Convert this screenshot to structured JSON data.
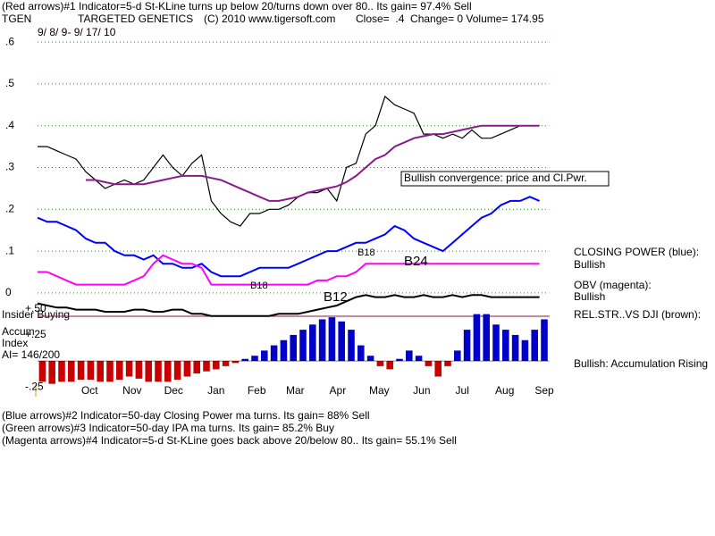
{
  "header": {
    "line1": "(Red arrows)#1 Indicator=5-d St-KLine turns up below 20/turns down over 80.. Its gain= 97.4% Sell",
    "symbol": "TGEN",
    "company": "TARGETED GENETICS",
    "copyright": "(C) 2010 www.tigersoft.com",
    "quote": "Close=  .4  Change= 0 Volume= 174.95",
    "date_range": "9/ 8/ 9- 9/ 17/ 10"
  },
  "side_labels": {
    "closing_power": "CLOSING POWER (blue):",
    "closing_power_state": "Bullish",
    "obv": "OBV (magenta):",
    "obv_state": "Bullish",
    "rel_str": "REL.STR..VS DJI (brown):",
    "accum_state": "Bullish: Accumulation Rising",
    "insider": "Insider Buying",
    "accum": "Accum",
    "index": "Index",
    "ai": "AI= 146/200"
  },
  "footer": [
    "(Blue arrows)#2 Indicator=50-day Closing Power ma turns. Its gain= 88% Sell",
    "(Green arrows)#3 Indicator=50-day IPA ma turns. Its gain= 85.2% Buy",
    "(Magenta arrows)#4 Indicator=5-d St-KLine goes back above 20/below 80.. Its gain= 55.1% Sell"
  ],
  "chart_data": [
    {
      "type": "line",
      "annotations": [
        "Bullish convergence: price and Cl.Pwr.",
        "B24",
        "B12",
        "B18",
        "B18"
      ],
      "x": [
        0,
        1,
        2,
        3,
        4,
        5,
        6,
        7,
        8,
        9,
        10,
        11,
        12,
        13,
        14,
        15,
        16,
        17,
        18,
        19,
        20,
        21,
        22,
        23,
        24,
        25,
        26,
        27,
        28,
        29,
        30,
        31,
        32,
        33,
        34,
        35,
        36,
        37,
        38,
        39,
        40,
        41,
        42,
        43,
        44,
        45,
        46,
        47,
        48,
        49,
        50,
        51,
        52
      ],
      "xlim": [
        0,
        53
      ],
      "xticks": [
        {
          "value": 5.4,
          "label": "Oct"
        },
        {
          "value": 9.8,
          "label": "Nov"
        },
        {
          "value": 14.1,
          "label": "Dec"
        },
        {
          "value": 18.5,
          "label": "Jan"
        },
        {
          "value": 22.7,
          "label": "Feb"
        },
        {
          "value": 26.7,
          "label": "Mar"
        },
        {
          "value": 31.1,
          "label": "Apr"
        },
        {
          "value": 35.4,
          "label": "May"
        },
        {
          "value": 39.8,
          "label": "Jun"
        },
        {
          "value": 44,
          "label": "Jul"
        },
        {
          "value": 48.4,
          "label": "Aug"
        },
        {
          "value": 52.5,
          "label": "Sep"
        }
      ],
      "ylim": [
        -0.06,
        0.613
      ],
      "yticks": [
        {
          "value": 0.6,
          "label": ".6"
        },
        {
          "value": 0.5,
          "label": ".5"
        },
        {
          "value": 0.4,
          "label": ".4"
        },
        {
          "value": 0.3,
          "label": ".3"
        },
        {
          "value": 0.2,
          "label": ".2"
        },
        {
          "value": 0.1,
          "label": ".1"
        },
        0
      ],
      "grid": true,
      "grid_color": "#2e8b2e",
      "series": [
        {
          "color": "#000000",
          "values": [
            0.35,
            0.35,
            0.34,
            0.33,
            0.32,
            0.29,
            0.27,
            0.25,
            0.26,
            0.27,
            0.26,
            0.27,
            0.3,
            0.33,
            0.3,
            0.28,
            0.31,
            0.33,
            0.22,
            0.19,
            0.17,
            0.16,
            0.19,
            0.19,
            0.2,
            0.2,
            0.21,
            0.23,
            0.24,
            0.24,
            0.25,
            0.22,
            0.3,
            0.31,
            0.38,
            0.4,
            0.47,
            0.45,
            0.44,
            0.43,
            0.38,
            0.38,
            0.37,
            0.38,
            0.37,
            0.39,
            0.37,
            0.37,
            0.38,
            0.39,
            0.4,
            0.4,
            0.4
          ]
        },
        {
          "color": "#8b1a8b",
          "values": [
            null,
            null,
            null,
            null,
            null,
            0.27,
            0.27,
            0.265,
            0.26,
            0.26,
            0.26,
            0.26,
            0.265,
            0.27,
            0.275,
            0.28,
            0.28,
            0.28,
            0.275,
            0.27,
            0.26,
            0.25,
            0.24,
            0.23,
            0.22,
            0.22,
            0.225,
            0.23,
            0.24,
            0.245,
            0.25,
            0.255,
            0.265,
            0.28,
            0.3,
            0.32,
            0.33,
            0.35,
            0.36,
            0.37,
            0.375,
            0.38,
            0.38,
            0.385,
            0.39,
            0.395,
            0.4,
            0.4,
            0.4,
            0.4,
            0.4,
            0.4,
            0.4
          ]
        },
        {
          "color": "#0000ff",
          "values": [
            0.18,
            0.17,
            0.17,
            0.16,
            0.15,
            0.13,
            0.12,
            0.12,
            0.1,
            0.09,
            0.09,
            0.08,
            0.09,
            0.07,
            0.07,
            0.06,
            0.06,
            0.07,
            0.05,
            0.04,
            0.04,
            0.04,
            0.05,
            0.06,
            0.06,
            0.06,
            0.06,
            0.07,
            0.08,
            0.09,
            0.1,
            0.1,
            0.11,
            0.12,
            0.12,
            0.13,
            0.14,
            0.16,
            0.15,
            0.13,
            0.12,
            0.11,
            0.1,
            0.12,
            0.14,
            0.16,
            0.18,
            0.19,
            0.21,
            0.22,
            0.22,
            0.23,
            0.22
          ]
        },
        {
          "color": "#ff00ff",
          "values": [
            0.05,
            0.05,
            0.04,
            0.03,
            0.02,
            0.02,
            0.02,
            0.02,
            0.02,
            0.02,
            0.03,
            0.04,
            0.07,
            0.09,
            0.08,
            0.07,
            0.07,
            0.06,
            0.02,
            0.02,
            0.02,
            0.02,
            0.02,
            0.02,
            0.02,
            0.02,
            0.02,
            0.02,
            0.02,
            0.03,
            0.03,
            0.04,
            0.04,
            0.05,
            0.07,
            0.07,
            0.07,
            0.07,
            0.07,
            0.07,
            0.07,
            0.07,
            0.07,
            0.07,
            0.07,
            0.07,
            0.07,
            0.07,
            0.07,
            0.07,
            0.07,
            0.07,
            0.07
          ]
        },
        {
          "color": "#000000",
          "values": [
            -0.025,
            -0.03,
            -0.035,
            -0.035,
            -0.04,
            -0.04,
            -0.04,
            -0.045,
            -0.045,
            -0.045,
            -0.04,
            -0.04,
            -0.045,
            -0.045,
            -0.04,
            -0.04,
            -0.05,
            -0.05,
            -0.055,
            -0.055,
            -0.055,
            -0.055,
            -0.055,
            -0.055,
            -0.055,
            -0.05,
            -0.05,
            -0.05,
            -0.045,
            -0.04,
            -0.035,
            -0.03,
            -0.02,
            -0.01,
            -0.005,
            -0.01,
            -0.01,
            -0.005,
            -0.01,
            -0.01,
            -0.005,
            -0.01,
            -0.01,
            -0.005,
            -0.01,
            -0.005,
            -0.005,
            -0.01,
            -0.01,
            -0.01,
            -0.01,
            -0.01,
            -0.01
          ]
        }
      ]
    },
    {
      "type": "bar",
      "xlim": [
        0,
        53
      ],
      "ylim": [
        -0.3,
        0.55
      ],
      "yticks": [
        {
          "value": 0.5,
          "label": "+.50"
        },
        {
          "value": 0.25,
          "label": "+.25"
        },
        {
          "value": -0.25,
          "label": "-.25"
        }
      ],
      "positive_color": "#0000c8",
      "negative_color": "#c80000",
      "values": [
        -0.2,
        -0.22,
        -0.2,
        -0.2,
        -0.18,
        -0.18,
        -0.2,
        -0.2,
        -0.18,
        -0.15,
        -0.17,
        -0.2,
        -0.2,
        -0.2,
        -0.18,
        -0.15,
        -0.12,
        -0.1,
        -0.08,
        -0.05,
        -0.02,
        0.02,
        0.05,
        0.1,
        0.15,
        0.2,
        0.25,
        0.3,
        0.35,
        0.4,
        0.42,
        0.38,
        0.3,
        0.15,
        0.05,
        -0.05,
        -0.08,
        0.02,
        0.1,
        0.05,
        -0.05,
        -0.15,
        -0.05,
        0.1,
        0.3,
        0.45,
        0.45,
        0.35,
        0.3,
        0.25,
        0.2,
        0.3,
        0.4
      ]
    }
  ]
}
